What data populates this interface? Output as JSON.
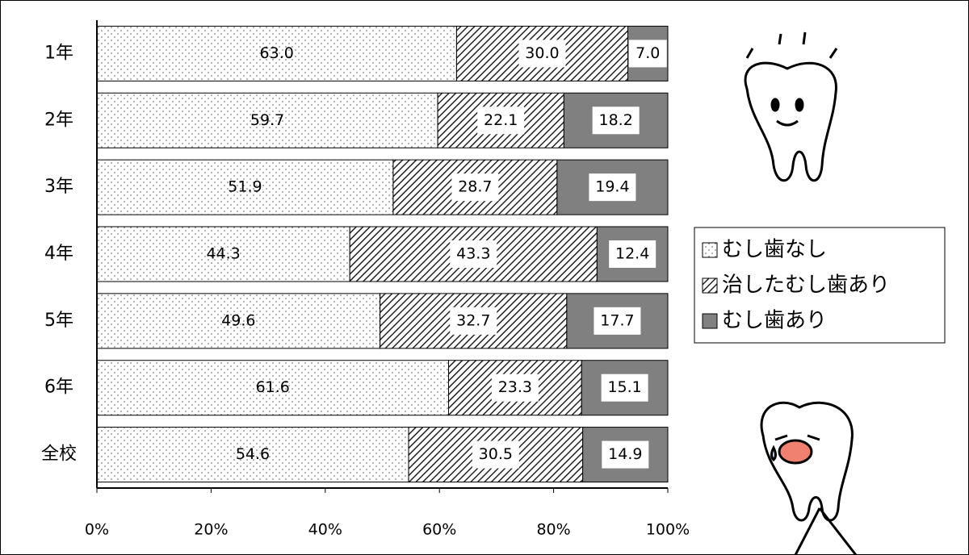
{
  "chart_data": {
    "type": "stacked-bar-horizontal",
    "categories": [
      "1年",
      "2年",
      "3年",
      "4年",
      "5年",
      "6年",
      "全校"
    ],
    "series": [
      {
        "name": "むし歯なし",
        "color": "#ffffff",
        "pattern": "dots",
        "values": [
          63.0,
          59.7,
          51.9,
          44.3,
          49.6,
          61.6,
          54.6
        ],
        "value_labels": [
          "63.0",
          "59.7",
          "51.9",
          "44.3",
          "49.6",
          "61.6",
          "54.6"
        ]
      },
      {
        "name": "治したむし歯あり",
        "color": "#ffffff",
        "pattern": "hatch",
        "values": [
          30.0,
          22.1,
          28.7,
          43.3,
          32.7,
          23.3,
          30.5
        ],
        "value_labels": [
          "30.0",
          "22.1",
          "28.7",
          "43.3",
          "32.7",
          "23.3",
          "30.5"
        ]
      },
      {
        "name": "むし歯あり",
        "color": "#808080",
        "pattern": "solid",
        "values": [
          7.0,
          18.2,
          19.4,
          12.4,
          17.7,
          15.1,
          14.9
        ],
        "value_labels": [
          "7.0",
          "18.2",
          "19.4",
          "12.4",
          "17.7",
          "15.1",
          "14.9"
        ]
      }
    ],
    "xlim": [
      0,
      100
    ],
    "xticks": [
      {
        "value": 0,
        "label": "0%"
      },
      {
        "value": 20,
        "label": "20%"
      },
      {
        "value": 40,
        "label": "40%"
      },
      {
        "value": 60,
        "label": "60%"
      },
      {
        "value": 80,
        "label": "80%"
      },
      {
        "value": 100,
        "label": "100%"
      }
    ],
    "legend": "right"
  }
}
